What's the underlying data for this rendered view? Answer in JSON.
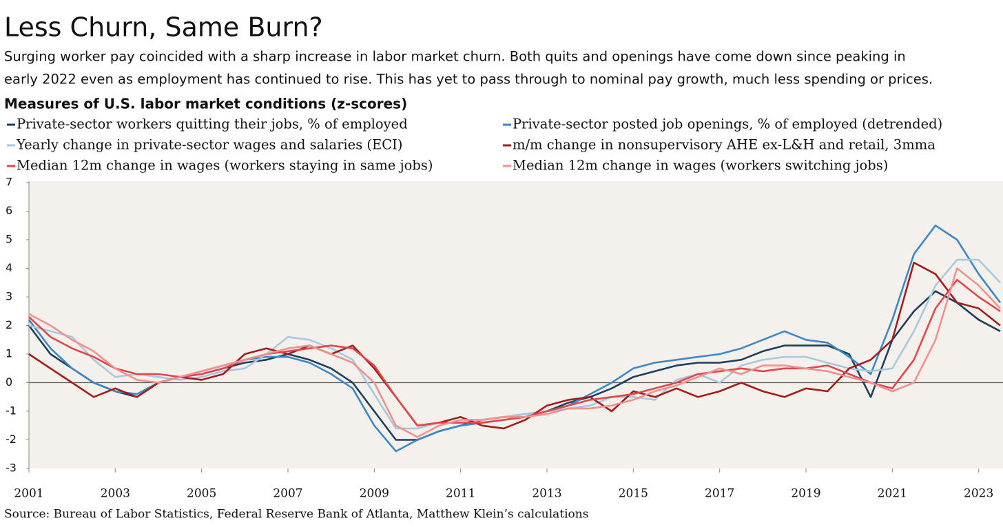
{
  "chart_data": {
    "type": "line",
    "title": "Less Churn, Same Burn?",
    "subtitle_lines": [
      "Surging worker pay coincided with a sharp increase in labor market churn. Both quits and openings have come down since peaking in",
      "early 2022 even as employment has continued to rise. This has yet to pass through to nominal pay growth, much less spending or prices."
    ],
    "chart_title": "Measures of U.S. labor market conditions (z-scores)",
    "source": "Source: Bureau of Labor Statistics, Federal Reserve Bank of Atlanta, Matthew Klein’s calculations",
    "x": [
      2001,
      2001.5,
      2002,
      2002.5,
      2003,
      2003.5,
      2004,
      2004.5,
      2005,
      2005.5,
      2006,
      2006.5,
      2007,
      2007.5,
      2008,
      2008.5,
      2009,
      2009.5,
      2010,
      2010.5,
      2011,
      2011.5,
      2012,
      2012.5,
      2013,
      2013.5,
      2014,
      2014.5,
      2015,
      2015.5,
      2016,
      2016.5,
      2017,
      2017.5,
      2018,
      2018.5,
      2019,
      2019.5,
      2020,
      2020.5,
      2021,
      2021.5,
      2022,
      2022.5,
      2023,
      2023.5
    ],
    "xlim": [
      2001,
      2023.5
    ],
    "xticks": [
      2001,
      2003,
      2005,
      2007,
      2009,
      2011,
      2013,
      2015,
      2017,
      2019,
      2021,
      2023
    ],
    "ylim": [
      -3,
      7
    ],
    "yticks": [
      -3,
      -2,
      -1,
      0,
      1,
      2,
      3,
      4,
      5,
      6,
      7
    ],
    "series": [
      {
        "name": "Private-sector workers quitting their jobs, % of employed",
        "color": "#1f3d5c",
        "values": [
          2,
          1,
          0.5,
          0,
          -0.3,
          -0.5,
          0,
          0.2,
          0.3,
          0.5,
          0.7,
          0.8,
          1,
          0.8,
          0.5,
          0,
          -1,
          -2,
          -2,
          -1.7,
          -1.5,
          -1.3,
          -1.2,
          -1.1,
          -1,
          -0.7,
          -0.5,
          -0.2,
          0.2,
          0.4,
          0.6,
          0.7,
          0.7,
          0.8,
          1.1,
          1.3,
          1.3,
          1.3,
          1,
          -0.5,
          1.5,
          2.5,
          3.2,
          2.8,
          2.2,
          1.8
        ]
      },
      {
        "name": "Private-sector posted job openings, % of employed (detrended)",
        "color": "#3b87c8",
        "values": [
          2.2,
          1.2,
          0.5,
          0,
          -0.3,
          -0.4,
          0,
          0.2,
          0.4,
          0.6,
          0.8,
          0.9,
          0.9,
          0.7,
          0.3,
          -0.2,
          -1.5,
          -2.4,
          -2,
          -1.7,
          -1.5,
          -1.4,
          -1.3,
          -1.2,
          -1,
          -0.8,
          -0.4,
          0,
          0.5,
          0.7,
          0.8,
          0.9,
          1,
          1.2,
          1.5,
          1.8,
          1.5,
          1.4,
          0.9,
          0.3,
          2.2,
          4.5,
          5.5,
          5,
          3.8,
          2.8
        ]
      },
      {
        "name": "Yearly change in private-sector wages and salaries (ECI)",
        "color": "#a9c8e0",
        "values": [
          2,
          1.8,
          1.6,
          0.8,
          0.2,
          0.3,
          0.2,
          0.1,
          0.2,
          0.4,
          0.5,
          1,
          1.6,
          1.5,
          1.2,
          0.8,
          -0.4,
          -1.6,
          -1.6,
          -1.4,
          -1.4,
          -1.3,
          -1.2,
          -1.1,
          -1,
          -0.9,
          -0.8,
          -0.5,
          -0.5,
          -0.6,
          0.1,
          0.3,
          0,
          0.6,
          0.8,
          0.9,
          0.9,
          0.7,
          0.5,
          0.4,
          0.5,
          1.8,
          3.4,
          4.3,
          4.3,
          3.5
        ]
      },
      {
        "name": "m/m change in nonsupervisory AHE ex-L&H and retail, 3mma",
        "color": "#a31b1b",
        "values": [
          1,
          0.5,
          0,
          -0.5,
          -0.2,
          -0.5,
          0,
          0.2,
          0.1,
          0.3,
          1,
          1.2,
          1,
          1.3,
          1,
          1.3,
          0.5,
          -0.5,
          -1.5,
          -1.4,
          -1.2,
          -1.5,
          -1.6,
          -1.3,
          -0.8,
          -0.6,
          -0.5,
          -1,
          -0.3,
          -0.5,
          -0.2,
          -0.5,
          -0.3,
          0,
          -0.3,
          -0.5,
          -0.2,
          -0.3,
          0.5,
          0.8,
          1.5,
          4.2,
          3.8,
          2.8,
          2.6,
          2
        ]
      },
      {
        "name": "Median 12m change in wages (workers staying in same jobs)",
        "color": "#e0464a",
        "values": [
          2.3,
          1.6,
          1.2,
          0.9,
          0.5,
          0.3,
          0.3,
          0.2,
          0.3,
          0.5,
          0.8,
          1,
          1.1,
          1.2,
          1.3,
          1.2,
          0.6,
          -0.5,
          -1.5,
          -1.4,
          -1.4,
          -1.4,
          -1.3,
          -1.2,
          -1,
          -0.8,
          -0.6,
          -0.5,
          -0.4,
          -0.2,
          0,
          0.3,
          0.4,
          0.5,
          0.4,
          0.5,
          0.5,
          0.6,
          0.3,
          0,
          -0.2,
          0.8,
          2.6,
          3.6,
          3,
          2.5
        ]
      },
      {
        "name": "Median 12m change in wages (workers switching jobs)",
        "color": "#f0908f",
        "values": [
          2.4,
          2,
          1.5,
          1.1,
          0.5,
          0.1,
          0,
          0.2,
          0.4,
          0.6,
          0.8,
          1,
          1.2,
          1.3,
          1,
          0.7,
          0,
          -1.5,
          -1.9,
          -1.5,
          -1.3,
          -1.3,
          -1.2,
          -1.2,
          -1.1,
          -0.9,
          -0.9,
          -0.8,
          -0.6,
          -0.3,
          -0.1,
          0.2,
          0.5,
          0.3,
          0.6,
          0.6,
          0.5,
          0.4,
          0.2,
          0,
          -0.3,
          0,
          1.5,
          4,
          3.4,
          2.6
        ]
      }
    ]
  }
}
